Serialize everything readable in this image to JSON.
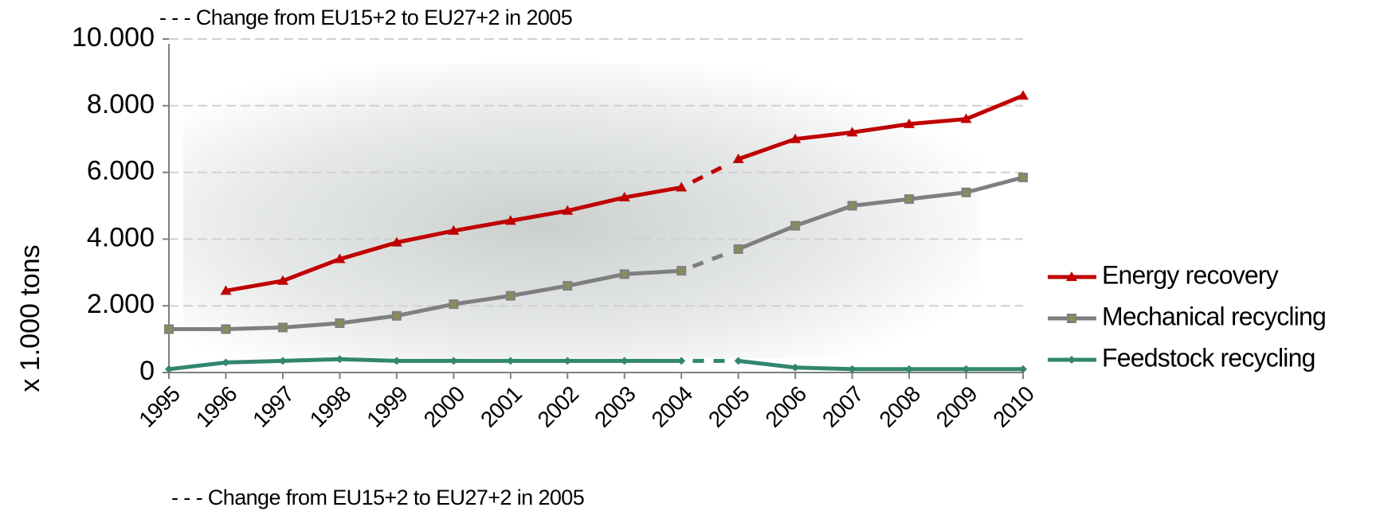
{
  "chart_data": {
    "type": "line",
    "y_label": "x 1.000 tons",
    "annotations": [
      "- - - Change from EU15+2 to EU27+2 in 2005",
      "- - - Change from EU15+2 to EU27+2 in 2005"
    ],
    "categories": [
      "1995",
      "1996",
      "1997",
      "1998",
      "1999",
      "2000",
      "2001",
      "2002",
      "2003",
      "2004",
      "2005",
      "2006",
      "2007",
      "2008",
      "2009",
      "2010"
    ],
    "dashed_segment": [
      "2004",
      "2005"
    ],
    "series": [
      {
        "name": "Energy recovery",
        "color": "#c00000",
        "marker": "triangle",
        "values": [
          null,
          2450,
          2750,
          3400,
          3900,
          4250,
          4550,
          4850,
          5250,
          5550,
          6400,
          7000,
          7200,
          7450,
          7600,
          8300
        ]
      },
      {
        "name": "Mechanical recycling",
        "color": "#7f7f7f",
        "marker": "square",
        "values": [
          1300,
          1300,
          1350,
          1480,
          1700,
          2050,
          2300,
          2600,
          2950,
          3050,
          3700,
          4400,
          5000,
          5200,
          5400,
          5850
        ]
      },
      {
        "name": "Feedstock recycling",
        "color": "#31866f",
        "marker": "diamond",
        "values": [
          100,
          300,
          350,
          400,
          350,
          350,
          350,
          350,
          350,
          350,
          350,
          150,
          100,
          100,
          100,
          100
        ]
      }
    ],
    "ylim": [
      0,
      10000
    ],
    "yticks": [
      0,
      {
        "value": 2000,
        "label": "2.000"
      },
      {
        "value": 4000,
        "label": "4.000"
      },
      {
        "value": 6000,
        "label": "6.000"
      },
      {
        "value": 8000,
        "label": "8.000"
      },
      {
        "value": 10000,
        "label": "10.000"
      }
    ],
    "grid": true,
    "legend": "right"
  }
}
